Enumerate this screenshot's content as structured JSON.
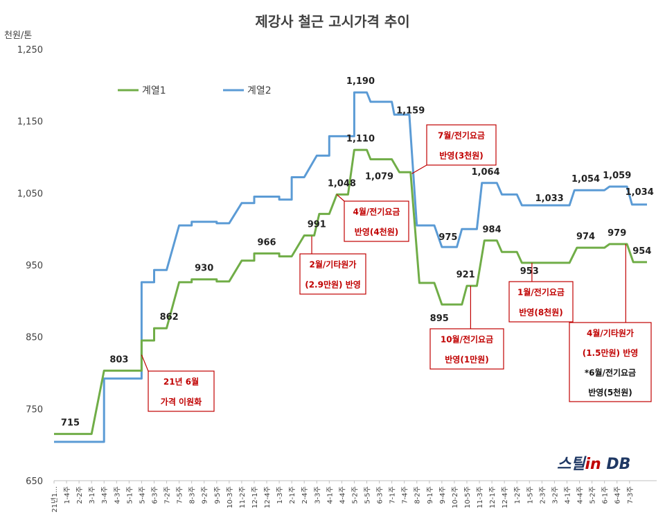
{
  "chart_data": {
    "type": "line",
    "title": "제강사 철근 고시가격 추이",
    "unit_label": "천원/톤",
    "ylim": [
      650,
      1250
    ],
    "yticks": [
      "1,250",
      "1,150",
      "1,050",
      "950",
      "850",
      "750",
      "650"
    ],
    "grid": false,
    "legend_position": "top-left",
    "x": [
      "21년1...",
      "1-4주",
      "2-2주",
      "3-1주",
      "3-4주",
      "4-3주",
      "5-1주",
      "5-4주",
      "6-3주",
      "7-2주",
      "7-5주",
      "8-3주",
      "9-2주",
      "9-5주",
      "10-3주",
      "11-2주",
      "12-1주",
      "12-4주",
      "1-3주",
      "2-1주",
      "2-4주",
      "3-3주",
      "4-1주",
      "4-4주",
      "5-2주",
      "5-5주",
      "6-3주",
      "7-1주",
      "7-4주",
      "8-2주",
      "9-1주",
      "9-4주",
      "10-2주",
      "10-5주",
      "11-3주",
      "12-1주",
      "12-4주",
      "1-2주",
      "1-5주",
      "2-3주",
      "3-2주",
      "4-1주",
      "4-4주",
      "5-2주",
      "6-1주",
      "6-4주",
      "7-3주"
    ],
    "series": [
      {
        "name": "계열1",
        "color": "#70ad47",
        "points": [
          [
            0,
            715
          ],
          [
            3,
            715
          ],
          [
            4,
            803
          ],
          [
            7,
            803
          ],
          [
            7,
            845
          ],
          [
            8,
            845
          ],
          [
            8,
            862
          ],
          [
            9,
            862
          ],
          [
            10,
            926
          ],
          [
            11,
            926
          ],
          [
            11,
            930
          ],
          [
            13,
            930
          ],
          [
            13,
            927
          ],
          [
            14,
            927
          ],
          [
            15,
            956
          ],
          [
            16,
            956
          ],
          [
            16,
            966
          ],
          [
            18,
            966
          ],
          [
            18,
            962
          ],
          [
            19,
            962
          ],
          [
            20,
            991
          ],
          [
            20.8,
            991
          ],
          [
            21.2,
            1021
          ],
          [
            22,
            1021
          ],
          [
            22.6,
            1048
          ],
          [
            23.5,
            1048
          ],
          [
            24,
            1110
          ],
          [
            25,
            1110
          ],
          [
            25.3,
            1097
          ],
          [
            27,
            1097
          ],
          [
            27.6,
            1079
          ],
          [
            28.5,
            1079
          ],
          [
            29.2,
            925
          ],
          [
            30.4,
            925
          ],
          [
            31,
            895
          ],
          [
            32.6,
            895
          ],
          [
            33,
            921
          ],
          [
            33.8,
            921
          ],
          [
            34.4,
            984
          ],
          [
            35.4,
            984
          ],
          [
            35.8,
            968
          ],
          [
            37,
            968
          ],
          [
            37.4,
            953
          ],
          [
            41.2,
            953
          ],
          [
            41.8,
            974
          ],
          [
            44,
            974
          ],
          [
            44.4,
            979
          ],
          [
            45.8,
            979
          ],
          [
            46.3,
            954
          ],
          [
            47.4,
            954
          ]
        ]
      },
      {
        "name": "계열2",
        "color": "#5b9bd5",
        "points": [
          [
            0,
            704
          ],
          [
            4,
            704
          ],
          [
            4,
            792
          ],
          [
            7,
            792
          ],
          [
            7,
            926
          ],
          [
            8,
            926
          ],
          [
            8,
            943
          ],
          [
            9,
            943
          ],
          [
            10,
            1005
          ],
          [
            11,
            1005
          ],
          [
            11,
            1010
          ],
          [
            13,
            1010
          ],
          [
            13,
            1008
          ],
          [
            14,
            1008
          ],
          [
            15,
            1036
          ],
          [
            16,
            1036
          ],
          [
            16,
            1045
          ],
          [
            18,
            1045
          ],
          [
            18,
            1041
          ],
          [
            19,
            1041
          ],
          [
            19,
            1072
          ],
          [
            20,
            1072
          ],
          [
            21,
            1102
          ],
          [
            22,
            1102
          ],
          [
            22,
            1129
          ],
          [
            24,
            1129
          ],
          [
            24,
            1190
          ],
          [
            25,
            1190
          ],
          [
            25.3,
            1177
          ],
          [
            27,
            1177
          ],
          [
            27.2,
            1159
          ],
          [
            28.4,
            1159
          ],
          [
            29,
            1005
          ],
          [
            30.4,
            1005
          ],
          [
            31,
            975
          ],
          [
            32.2,
            975
          ],
          [
            32.6,
            1000
          ],
          [
            33.8,
            1000
          ],
          [
            34.2,
            1064
          ],
          [
            35.4,
            1064
          ],
          [
            35.8,
            1048
          ],
          [
            37,
            1048
          ],
          [
            37.4,
            1033
          ],
          [
            41.2,
            1033
          ],
          [
            41.6,
            1054
          ],
          [
            44,
            1054
          ],
          [
            44.4,
            1059
          ],
          [
            45.8,
            1059
          ],
          [
            46.2,
            1034
          ],
          [
            47.4,
            1034
          ]
        ]
      }
    ],
    "data_labels": [
      {
        "x": 1.3,
        "y": 715,
        "text": "715",
        "dy": -12
      },
      {
        "x": 5.2,
        "y": 803,
        "text": "803",
        "dy": -12
      },
      {
        "x": 9.2,
        "y": 862,
        "text": "862",
        "dy": -12
      },
      {
        "x": 12,
        "y": 930,
        "text": "930",
        "dy": -12
      },
      {
        "x": 17,
        "y": 966,
        "text": "966",
        "dy": -12
      },
      {
        "x": 21,
        "y": 991,
        "text": "991",
        "dy": -12
      },
      {
        "x": 23,
        "y": 1048,
        "text": "1,048",
        "dy": -12
      },
      {
        "x": 24.5,
        "y": 1110,
        "text": "1,110",
        "dy": -12
      },
      {
        "x": 26,
        "y": 1079,
        "text": "1,079",
        "dy": 10
      },
      {
        "x": 24.5,
        "y": 1190,
        "text": "1,190",
        "dy": -12
      },
      {
        "x": 28.5,
        "y": 1159,
        "text": "1,159",
        "dy": -2
      },
      {
        "x": 31.5,
        "y": 975,
        "text": "975",
        "dy": -10
      },
      {
        "x": 30.8,
        "y": 895,
        "text": "895",
        "dy": 24
      },
      {
        "x": 32.9,
        "y": 921,
        "text": "921",
        "dy": -12
      },
      {
        "x": 35,
        "y": 984,
        "text": "984",
        "dy": -12
      },
      {
        "x": 34.5,
        "y": 1064,
        "text": "1,064",
        "dy": -12
      },
      {
        "x": 38,
        "y": 953,
        "text": "953",
        "dy": 16
      },
      {
        "x": 39.6,
        "y": 1033,
        "text": "1,033",
        "dy": -6
      },
      {
        "x": 42.5,
        "y": 974,
        "text": "974",
        "dy": -12
      },
      {
        "x": 42.5,
        "y": 1054,
        "text": "1,054",
        "dy": -12
      },
      {
        "x": 45,
        "y": 979,
        "text": "979",
        "dy": -12
      },
      {
        "x": 45,
        "y": 1059,
        "text": "1,059",
        "dy": -12
      },
      {
        "x": 47,
        "y": 954,
        "text": "954",
        "dy": -12
      },
      {
        "x": 46.8,
        "y": 1034,
        "text": "1,034",
        "dy": -14
      }
    ],
    "annotations": [
      {
        "lines": [
          "21년 6월",
          "가격 이원화"
        ],
        "anchor_x": 7,
        "anchor_y": 825
      },
      {
        "lines": [
          "2월/기타원가",
          "(2.9만원) 반영"
        ],
        "anchor_x": 20.6,
        "anchor_y": 990
      },
      {
        "lines": [
          "4월/전기요금",
          "반영(4천원)"
        ],
        "anchor_x": 22.6,
        "anchor_y": 1048
      },
      {
        "lines": [
          "7월/전기요금",
          "반영(3천원)"
        ],
        "anchor_x": 28.6,
        "anchor_y": 1077
      },
      {
        "lines": [
          "10월/전기요금",
          "반영(1만원)"
        ],
        "anchor_x": 33.3,
        "anchor_y": 921
      },
      {
        "lines": [
          "1월/전기요금",
          "반영(8천원)"
        ],
        "anchor_x": 38.2,
        "anchor_y": 953
      },
      {
        "lines": [
          "4월/기타원가",
          "(1.5만원) 반영",
          "*6월/전기요금",
          "반영(5천원)"
        ],
        "anchor_x": 45.7,
        "anchor_y": 979
      }
    ],
    "watermark": "스틸in DB"
  }
}
